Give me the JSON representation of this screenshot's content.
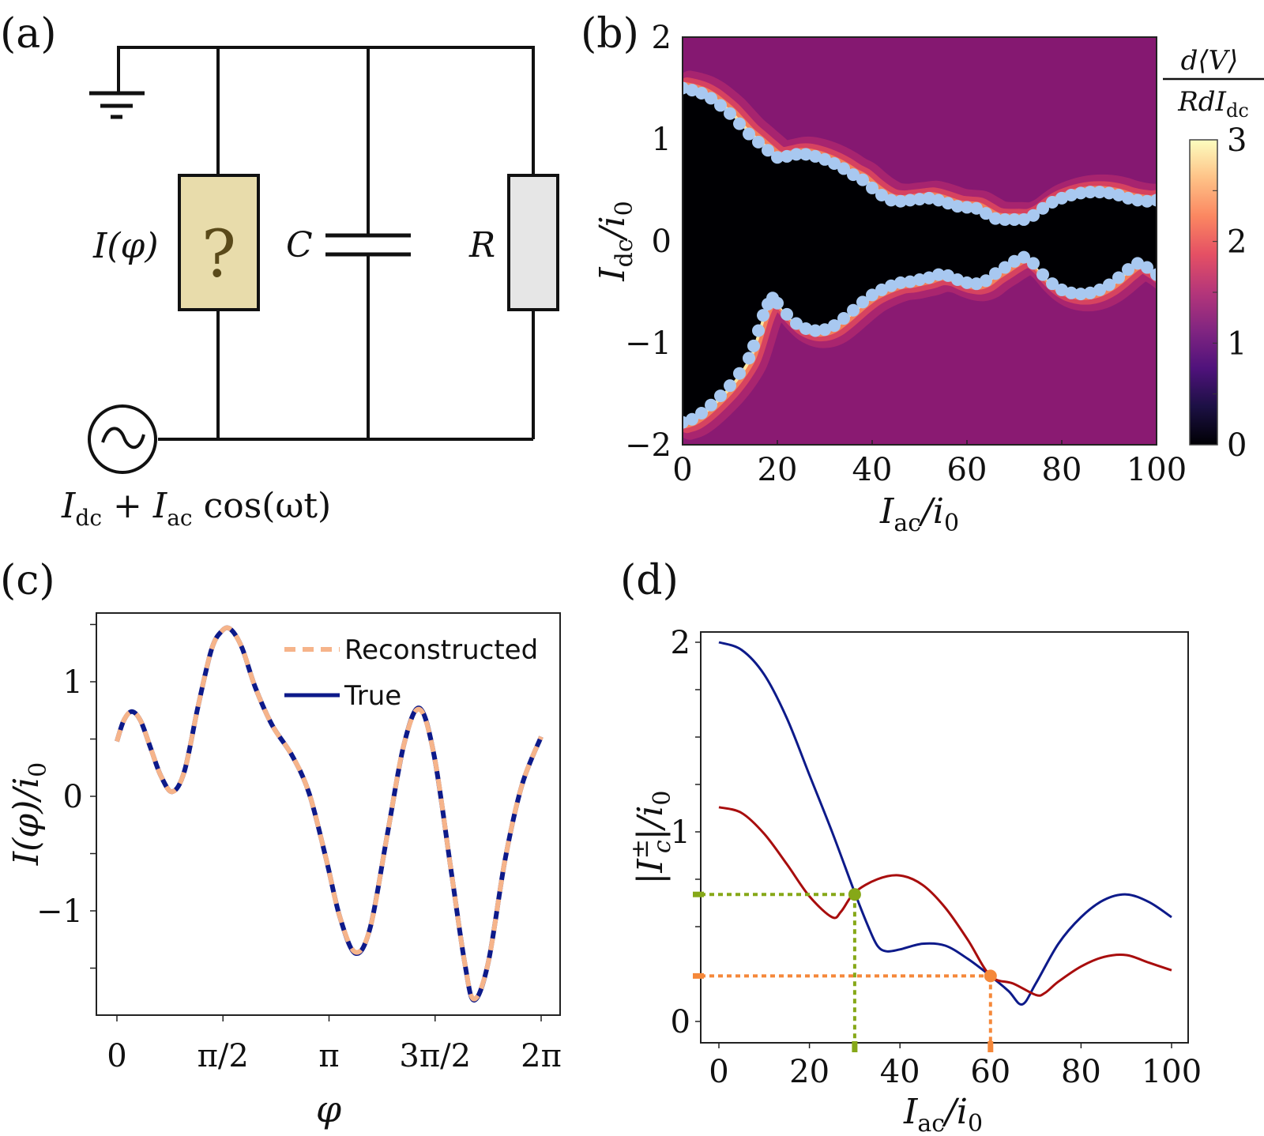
{
  "panels": {
    "a": {
      "label": "(a)",
      "junction_label": "I(φ)",
      "junction_symbol": "?",
      "capacitor_label": "C",
      "resistor_label": "R",
      "source_symbol": "~",
      "source_label_parts": [
        "I",
        "dc",
        " + ",
        "I",
        "ac",
        " cos(ωt)"
      ],
      "colors": {
        "junction_fill": "#e8dcab",
        "resistor_fill": "#e6e6e6",
        "question_mark": "#5a4a1a",
        "wire": "#111111"
      }
    },
    "b": {
      "label": "(b)",
      "colorbar_label_num": "d⟨V⟩",
      "colorbar_label_den_main": "RdI",
      "colorbar_label_den_sub": "dc",
      "colorbar_ticks": [
        "0",
        "1",
        "2",
        "3"
      ],
      "colormap": [
        "#000004",
        "#1c1044",
        "#4f127b",
        "#812581",
        "#b5367a",
        "#e55064",
        "#fb8761",
        "#fec287",
        "#fcfdbf"
      ]
    },
    "c": {
      "label": "(c)"
    },
    "d": {
      "label": "(d)"
    }
  },
  "chart_data": [
    {
      "panel": "b",
      "type": "heatmap",
      "title": "",
      "xlabel_main": "I",
      "xlabel_sub": "ac",
      "xlabel_tail": "/i",
      "xlabel_tail_sub": "0",
      "ylabel_main": "I",
      "ylabel_sub": "dc",
      "ylabel_tail": "/i",
      "ylabel_tail_sub": "0",
      "xlim": [
        0,
        100
      ],
      "ylim": [
        -2,
        2
      ],
      "xticks": [
        0,
        20,
        40,
        60,
        80,
        100
      ],
      "yticks": [
        -2,
        -1,
        0,
        1,
        2
      ],
      "colorbar": {
        "label": "d<V>/(R dI_dc)",
        "range": [
          0,
          3
        ],
        "ticks": [
          0,
          1,
          2,
          3
        ]
      },
      "marker_color": "#a8c8f0",
      "series": [
        {
          "name": "upper-switching-current",
          "x": [
            0,
            2,
            4,
            6,
            8,
            10,
            12,
            14,
            16,
            18,
            20,
            22,
            24,
            26,
            28,
            30,
            32,
            34,
            36,
            38,
            40,
            42,
            44,
            46,
            48,
            50,
            52,
            54,
            56,
            58,
            60,
            62,
            64,
            66,
            68,
            70,
            72,
            74,
            76,
            78,
            80,
            82,
            84,
            86,
            88,
            90,
            92,
            94,
            96,
            98,
            100
          ],
          "values": [
            1.5,
            1.48,
            1.45,
            1.4,
            1.33,
            1.25,
            1.15,
            1.05,
            0.97,
            0.89,
            0.82,
            0.83,
            0.85,
            0.85,
            0.83,
            0.8,
            0.76,
            0.71,
            0.65,
            0.6,
            0.52,
            0.45,
            0.4,
            0.39,
            0.4,
            0.41,
            0.42,
            0.4,
            0.37,
            0.34,
            0.33,
            0.32,
            0.27,
            0.22,
            0.21,
            0.21,
            0.21,
            0.25,
            0.32,
            0.38,
            0.42,
            0.45,
            0.47,
            0.48,
            0.48,
            0.47,
            0.45,
            0.42,
            0.4,
            0.39,
            0.4
          ]
        },
        {
          "name": "lower-switching-current",
          "x": [
            0,
            2,
            4,
            6,
            8,
            10,
            12,
            14,
            15,
            16,
            17,
            18,
            19,
            20,
            22,
            24,
            26,
            28,
            30,
            32,
            34,
            36,
            38,
            40,
            42,
            44,
            46,
            48,
            50,
            52,
            54,
            56,
            58,
            60,
            62,
            64,
            66,
            68,
            70,
            72,
            74,
            76,
            78,
            80,
            82,
            84,
            86,
            88,
            90,
            92,
            94,
            96,
            98,
            100
          ],
          "values": [
            -1.78,
            -1.75,
            -1.69,
            -1.61,
            -1.52,
            -1.42,
            -1.3,
            -1.15,
            -1.03,
            -0.88,
            -0.73,
            -0.62,
            -0.56,
            -0.61,
            -0.72,
            -0.81,
            -0.86,
            -0.88,
            -0.87,
            -0.83,
            -0.76,
            -0.68,
            -0.6,
            -0.53,
            -0.48,
            -0.44,
            -0.41,
            -0.4,
            -0.38,
            -0.36,
            -0.33,
            -0.34,
            -0.38,
            -0.41,
            -0.42,
            -0.39,
            -0.32,
            -0.26,
            -0.2,
            -0.16,
            -0.22,
            -0.33,
            -0.42,
            -0.48,
            -0.51,
            -0.52,
            -0.51,
            -0.48,
            -0.43,
            -0.36,
            -0.28,
            -0.22,
            -0.26,
            -0.33
          ]
        }
      ]
    },
    {
      "panel": "c",
      "type": "line",
      "title": "",
      "xlabel": "φ",
      "ylabel_main": "I(φ)/i",
      "ylabel_sub": "0",
      "xlim": [
        0,
        6.2832
      ],
      "ylim": [
        -1.95,
        1.65
      ],
      "xticks": [
        0,
        1.5708,
        3.1416,
        4.7124,
        6.2832
      ],
      "xtick_labels": [
        "0",
        "π/2",
        "π",
        "3π/2",
        "2π"
      ],
      "yticks": [
        -1,
        0,
        1
      ],
      "yminor_ticks": [
        -1.5,
        -0.5,
        0.5,
        1.5
      ],
      "legend": {
        "position": "top-right",
        "entries": [
          "Reconstructed",
          "True"
        ]
      },
      "x": [
        0.0,
        0.1,
        0.22,
        0.35,
        0.5,
        0.65,
        0.82,
        1.0,
        1.2,
        1.4,
        1.55,
        1.68,
        1.85,
        2.05,
        2.3,
        2.6,
        2.85,
        3.1,
        3.3,
        3.53,
        3.75,
        4.0,
        4.25,
        4.48,
        4.7,
        4.95,
        5.15,
        5.29,
        5.5,
        5.75,
        6.0,
        6.2832
      ],
      "series": [
        {
          "name": "True",
          "color": "#0d1a8a",
          "values": [
            0.48,
            0.66,
            0.74,
            0.66,
            0.42,
            0.18,
            0.04,
            0.22,
            0.78,
            1.28,
            1.44,
            1.46,
            1.3,
            0.95,
            0.62,
            0.35,
            0.02,
            -0.55,
            -1.05,
            -1.37,
            -1.15,
            -0.35,
            0.45,
            0.77,
            0.35,
            -0.65,
            -1.45,
            -1.78,
            -1.45,
            -0.55,
            0.1,
            0.52
          ]
        },
        {
          "name": "Reconstructed",
          "color": "#f6b48a",
          "values": [
            0.48,
            0.66,
            0.74,
            0.66,
            0.42,
            0.18,
            0.04,
            0.22,
            0.78,
            1.28,
            1.44,
            1.46,
            1.3,
            0.95,
            0.62,
            0.35,
            0.02,
            -0.55,
            -1.05,
            -1.36,
            -1.15,
            -0.35,
            0.45,
            0.76,
            0.35,
            -0.65,
            -1.45,
            -1.77,
            -1.45,
            -0.55,
            0.1,
            0.52
          ]
        }
      ]
    },
    {
      "panel": "d",
      "type": "line",
      "title": "",
      "xlabel_main": "I",
      "xlabel_sub": "ac",
      "xlabel_tail": "/i",
      "xlabel_tail_sub": "0",
      "ylabel_main": "|I",
      "ylabel_sub": "c",
      "ylabel_sup": "±",
      "ylabel_tail": "|/i",
      "ylabel_tail_sub": "0",
      "xlim": [
        -4,
        104
      ],
      "ylim": [
        -0.12,
        2.16
      ],
      "xticks": [
        0,
        20,
        40,
        60,
        80,
        100
      ],
      "yticks": [
        0,
        1,
        2
      ],
      "yminor_ticks": [
        0.25,
        0.5,
        0.75,
        1.25,
        1.5,
        1.75
      ],
      "series": [
        {
          "name": "I_c^+",
          "color": "#0d1a8a",
          "x": [
            0,
            5,
            10,
            15,
            20,
            25,
            30,
            33,
            35,
            37,
            40,
            45,
            50,
            55,
            60,
            64,
            67,
            70,
            75,
            80,
            85,
            90,
            95,
            100
          ],
          "values": [
            2.0,
            1.96,
            1.83,
            1.6,
            1.3,
            1.0,
            0.68,
            0.5,
            0.4,
            0.37,
            0.38,
            0.41,
            0.4,
            0.33,
            0.24,
            0.16,
            0.09,
            0.2,
            0.41,
            0.55,
            0.64,
            0.67,
            0.63,
            0.55
          ]
        },
        {
          "name": "I_c^-",
          "color": "#a80d0d",
          "x": [
            0,
            5,
            10,
            15,
            20,
            25,
            27,
            30,
            35,
            40,
            45,
            50,
            55,
            60,
            65,
            70,
            72,
            75,
            80,
            85,
            90,
            95,
            100
          ],
          "values": [
            1.13,
            1.1,
            0.99,
            0.83,
            0.66,
            0.55,
            0.58,
            0.68,
            0.75,
            0.77,
            0.72,
            0.6,
            0.43,
            0.24,
            0.2,
            0.14,
            0.15,
            0.21,
            0.29,
            0.34,
            0.35,
            0.31,
            0.27
          ]
        }
      ],
      "annotations": [
        {
          "name": "green-crossing",
          "x": 30,
          "y": 0.67,
          "color": "#86a818"
        },
        {
          "name": "orange-crossing",
          "x": 60,
          "y": 0.24,
          "color": "#f5883a"
        }
      ]
    }
  ]
}
